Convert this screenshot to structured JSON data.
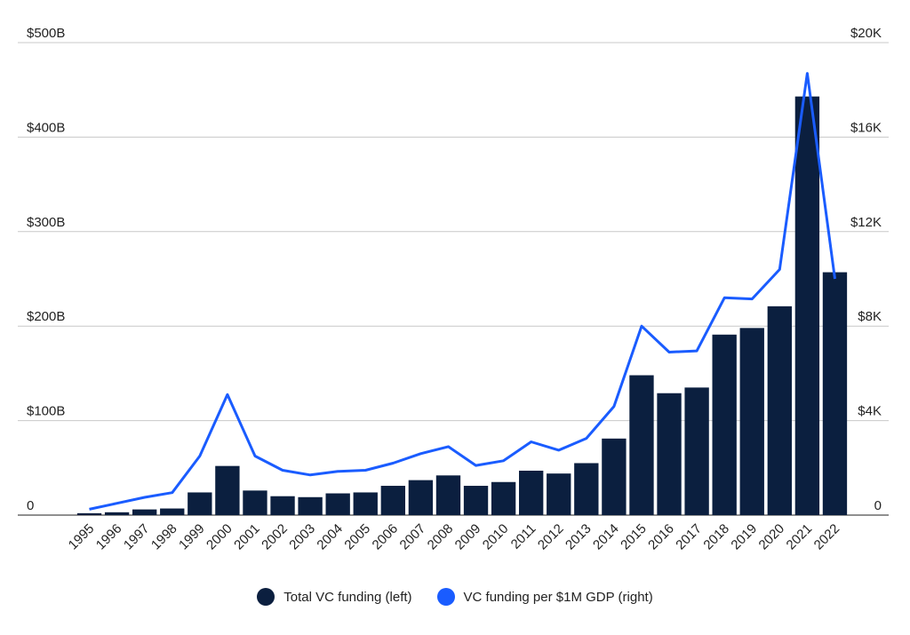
{
  "chart_data": {
    "type": "bar",
    "title": "",
    "xlabel": "",
    "ylabel": "",
    "categories": [
      "1995",
      "1996",
      "1997",
      "1998",
      "1999",
      "2000",
      "2001",
      "2002",
      "2003",
      "2004",
      "2005",
      "2006",
      "2007",
      "2008",
      "2009",
      "2010",
      "2011",
      "2012",
      "2013",
      "2014",
      "2015",
      "2016",
      "2017",
      "2018",
      "2019",
      "2020",
      "2021",
      "2022"
    ],
    "series": [
      {
        "name": "Total VC funding (left)",
        "type": "bar",
        "axis": "left",
        "color": "#0b1f3f",
        "values": [
          2,
          3,
          6,
          7,
          24,
          52,
          26,
          20,
          19,
          23,
          24,
          31,
          37,
          42,
          31,
          35,
          47,
          44,
          55,
          81,
          148,
          129,
          135,
          191,
          198,
          221,
          443,
          257
        ]
      },
      {
        "name": "VC funding per $1M GDP (right)",
        "type": "line",
        "axis": "right",
        "color": "#1a5cff",
        "values": [
          250,
          500,
          750,
          950,
          2500,
          5100,
          2500,
          1900,
          1700,
          1850,
          1900,
          2200,
          2600,
          2900,
          2100,
          2300,
          3100,
          2750,
          3250,
          4600,
          8000,
          6900,
          6950,
          9200,
          9150,
          10400,
          18700,
          10000
        ]
      }
    ],
    "left_axis": {
      "ylim": [
        0,
        500
      ],
      "ticks": [
        0,
        100,
        200,
        300,
        400,
        500
      ],
      "tick_labels": [
        "0",
        "$100B",
        "$200B",
        "$300B",
        "$400B",
        "$500B"
      ]
    },
    "right_axis": {
      "ylim": [
        0,
        20000
      ],
      "ticks": [
        0,
        4000,
        8000,
        12000,
        16000,
        20000
      ],
      "tick_labels": [
        "0",
        "$4K",
        "$8K",
        "$12K",
        "$16K",
        "$20K"
      ]
    },
    "grid": "horizontal",
    "legend_position": "bottom-center"
  },
  "legend": {
    "items": [
      {
        "label": "Total VC funding (left)",
        "color": "#0b1f3f"
      },
      {
        "label": "VC funding per $1M GDP (right)",
        "color": "#1a5cff"
      }
    ]
  }
}
